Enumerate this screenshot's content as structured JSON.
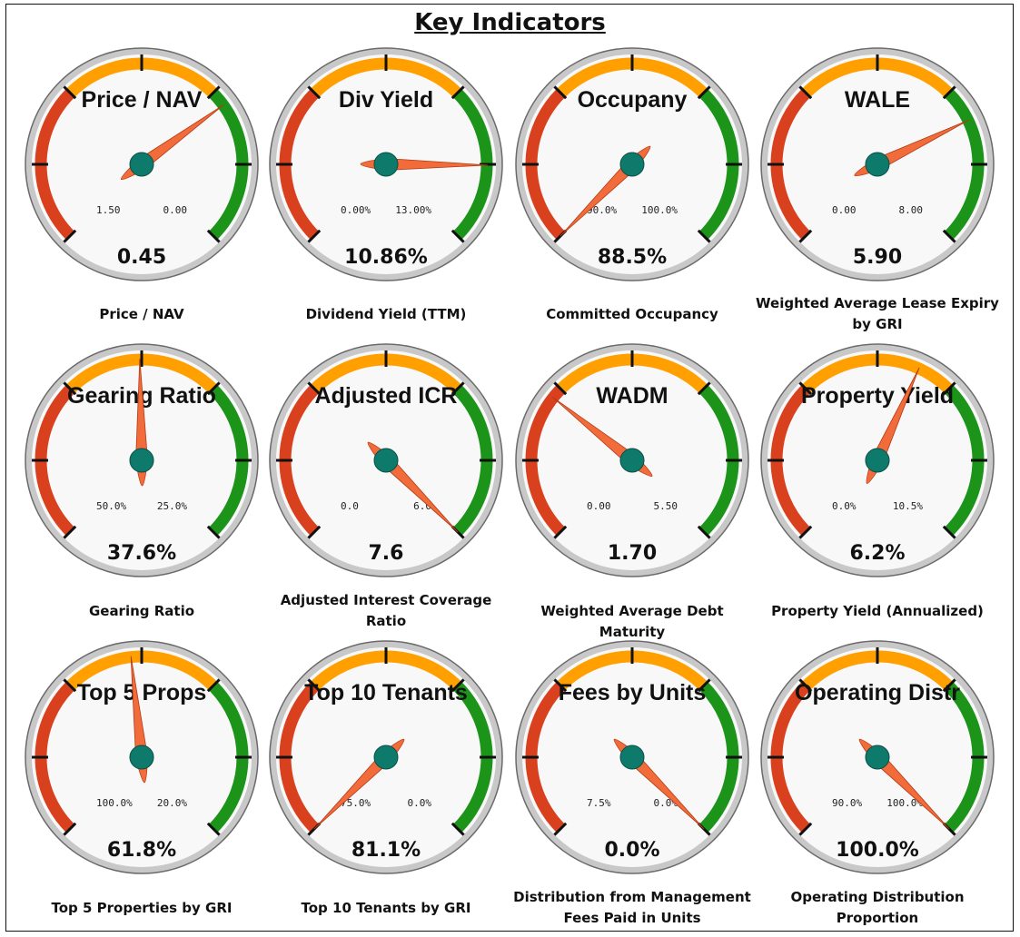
{
  "title": "Key Indicators",
  "colors": {
    "red": "#d9411e",
    "orange": "#ff9f00",
    "green": "#1b9419",
    "needle": "#f26b3a",
    "hub": "#0e7a6c",
    "face": "#f8f8f8",
    "bezel": "#c8c8c8"
  },
  "gauges": [
    {
      "name": "Price / NAV",
      "value": "0.45",
      "min": "1.50",
      "max": "0.00",
      "needle_fraction": 0.7,
      "caption": "Price / NAV"
    },
    {
      "name": "Div Yield",
      "value": "10.86%",
      "min": "0.00%",
      "max": "13.00%",
      "needle_fraction": 0.835,
      "caption": "Dividend Yield (TTM)"
    },
    {
      "name": "Occupany",
      "value": "88.5%",
      "min": "90.0%",
      "max": "100.0%",
      "needle_fraction": 0.0,
      "caption": "Committed Occupancy"
    },
    {
      "name": "WALE",
      "value": "5.90",
      "min": "0.00",
      "max": "8.00",
      "needle_fraction": 0.7375,
      "caption": "Weighted Average Lease Expiry by GRI"
    },
    {
      "name": "Gearing Ratio",
      "value": "37.6%",
      "min": "50.0%",
      "max": "25.0%",
      "needle_fraction": 0.496,
      "caption": "Gearing Ratio"
    },
    {
      "name": "Adjusted ICR",
      "value": "7.6",
      "min": "0.0",
      "max": "6.0",
      "needle_fraction": 1.0,
      "caption": "Adjusted Interest Coverage Ratio"
    },
    {
      "name": "WADM",
      "value": "1.70",
      "min": "0.00",
      "max": "5.50",
      "needle_fraction": 0.309,
      "caption": "Weighted Average Debt Maturity"
    },
    {
      "name": "Property Yield",
      "value": "6.2%",
      "min": "0.0%",
      "max": "10.5%",
      "needle_fraction": 0.59,
      "caption": "Property Yield (Annualized)"
    },
    {
      "name": "Top 5 Props",
      "value": "61.8%",
      "min": "100.0%",
      "max": "20.0%",
      "needle_fraction": 0.4775,
      "caption": "Top 5 Properties by GRI"
    },
    {
      "name": "Top 10 Tenants",
      "value": "81.1%",
      "min": "75.0%",
      "max": "0.0%",
      "needle_fraction": 0.0,
      "caption": "Top 10 Tenants by GRI"
    },
    {
      "name": "Fees by Units",
      "value": "0.0%",
      "min": "7.5%",
      "max": "0.0%",
      "needle_fraction": 1.0,
      "caption": "Distribution from Management Fees Paid in Units"
    },
    {
      "name": "Operating Distr",
      "value": "100.0%",
      "min": "90.0%",
      "max": "100.0%",
      "needle_fraction": 1.0,
      "caption": "Operating Distribution Proportion"
    }
  ]
}
